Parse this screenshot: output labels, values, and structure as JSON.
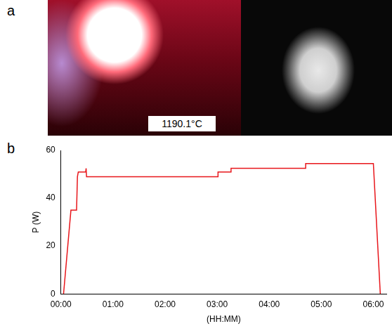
{
  "image_panel": {
    "label": "a",
    "caption": "1190.1°C"
  },
  "chart_panel_label": "b",
  "chart_data": {
    "type": "line",
    "x_label": "(HH:MM)",
    "y_label": "P (W)",
    "x": [
      3,
      11.5,
      18,
      19,
      20,
      28.5,
      29,
      29.5,
      181,
      181,
      196,
      196,
      282,
      282,
      360,
      368
    ],
    "values": [
      0,
      35,
      35,
      49,
      51,
      51,
      52.5,
      49,
      49,
      51,
      51,
      52.5,
      52.5,
      54.5,
      54.5,
      0
    ],
    "color": "#e8161b",
    "xlim": [
      0,
      375
    ],
    "xticks": [
      {
        "value": 0,
        "label": "00:00"
      },
      {
        "value": 60,
        "label": "01:00"
      },
      {
        "value": 120,
        "label": "02:00"
      },
      {
        "value": 180,
        "label": "03:00"
      },
      {
        "value": 240,
        "label": "04:00"
      },
      {
        "value": 300,
        "label": "05:00"
      },
      {
        "value": 360,
        "label": "06:00"
      }
    ],
    "ylim": [
      0,
      60
    ],
    "yticks": [
      0,
      20,
      40,
      60
    ],
    "grid": false
  }
}
